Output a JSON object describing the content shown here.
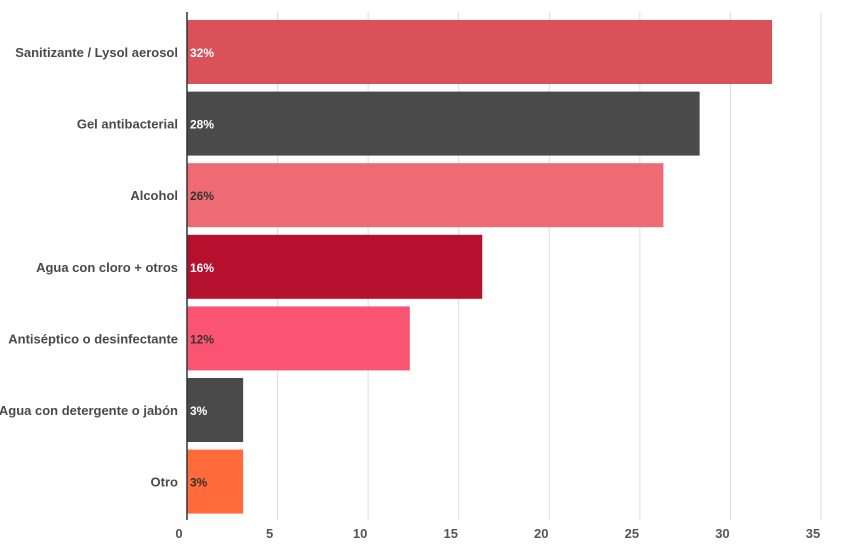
{
  "chart_data": {
    "type": "bar",
    "orientation": "horizontal",
    "categories": [
      "Sanitizante / Lysol aerosol",
      "Gel antibacterial",
      "Alcohol",
      "Agua con cloro + otros",
      "Antiséptico o desinfectante",
      "Agua con detergente o jabón",
      "Otro"
    ],
    "values": [
      32.3,
      28.3,
      26.3,
      16.3,
      12.3,
      3.1,
      3.1
    ],
    "data_labels": [
      "32%",
      "28%",
      "26%",
      "16%",
      "12%",
      "3%",
      "3%"
    ],
    "colors": [
      "#d9525a",
      "#4a4a4a",
      "#ef6b73",
      "#b5102e",
      "#fb5473",
      "#4a4a4a",
      "#ff6b3a"
    ],
    "label_colors": [
      "#ffffff",
      "#ffffff",
      "#333333",
      "#ffffff",
      "#333333",
      "#ffffff",
      "#333333"
    ],
    "xlim": [
      0,
      35
    ],
    "xticks": [
      0,
      5,
      10,
      15,
      20,
      25,
      30,
      35
    ],
    "grid": true,
    "title": "",
    "xlabel": "",
    "ylabel": ""
  }
}
